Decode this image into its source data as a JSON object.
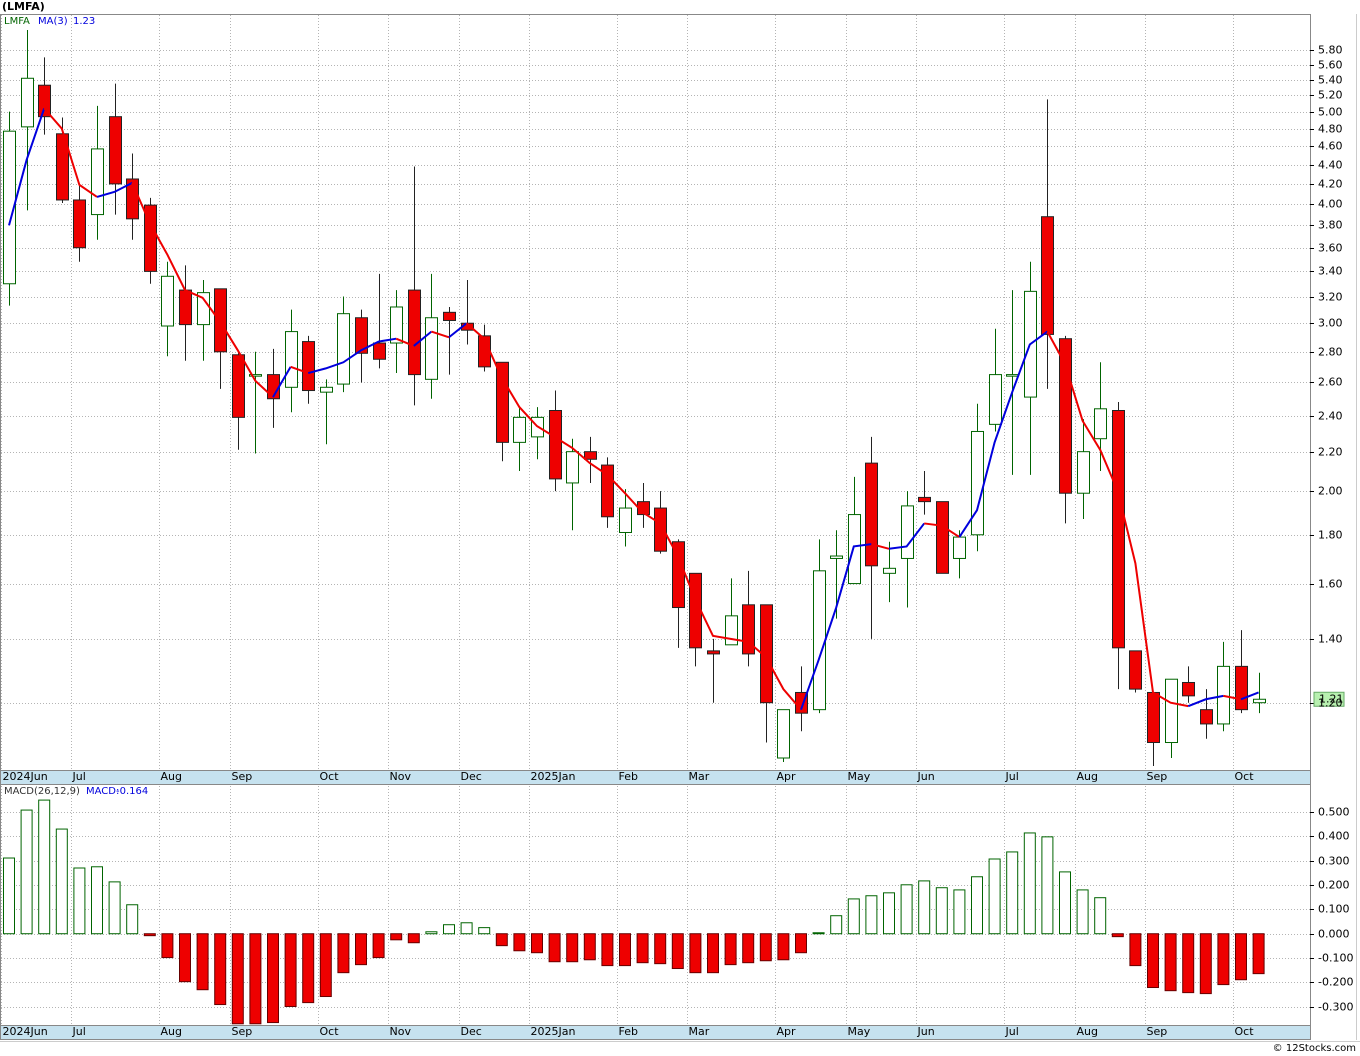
{
  "chart_data": [
    {
      "type": "candlestick",
      "title": "(LMFA)",
      "name": "LMFA",
      "log_scale": true,
      "grid": true,
      "up_color": "#006400",
      "down_color": "#ee0000",
      "categories": [
        "2024Jun",
        null,
        null,
        null,
        "Jul",
        null,
        null,
        null,
        null,
        "Aug",
        null,
        null,
        null,
        "Sep",
        null,
        null,
        null,
        null,
        "Oct",
        null,
        null,
        null,
        "Nov",
        null,
        null,
        null,
        "Dec",
        null,
        null,
        null,
        "2025Jan",
        null,
        null,
        null,
        null,
        "Feb",
        null,
        null,
        null,
        "Mar",
        null,
        null,
        null,
        null,
        "Apr",
        null,
        null,
        null,
        "May",
        null,
        null,
        null,
        "Jun",
        null,
        null,
        null,
        null,
        "Jul",
        null,
        null,
        null,
        "Aug",
        null,
        null,
        null,
        "Sep",
        null,
        null,
        null,
        null,
        "Oct",
        null
      ],
      "open": [
        3.3,
        4.82,
        5.33,
        4.74,
        4.04,
        3.9,
        4.94,
        4.25,
        3.99,
        2.98,
        3.25,
        2.99,
        3.26,
        2.78,
        2.64,
        2.65,
        2.57,
        2.87,
        2.54,
        2.59,
        3.04,
        2.86,
        2.86,
        3.25,
        2.62,
        3.08,
        3.0,
        2.91,
        2.73,
        2.25,
        2.28,
        2.43,
        2.04,
        2.2,
        2.13,
        1.81,
        1.95,
        1.92,
        1.77,
        1.64,
        1.36,
        1.38,
        1.52,
        1.52,
        1.05,
        1.23,
        1.18,
        1.7,
        1.6,
        2.14,
        1.64,
        1.7,
        1.97,
        1.95,
        1.7,
        1.8,
        2.35,
        2.64,
        2.51,
        3.88,
        2.89,
        1.99,
        2.27,
        2.43,
        1.36,
        1.23,
        1.09,
        1.26,
        1.18,
        1.14,
        1.31,
        1.2
      ],
      "high": [
        5.0,
        6.09,
        5.7,
        4.93,
        4.2,
        5.07,
        5.35,
        4.52,
        4.06,
        3.48,
        3.45,
        3.33,
        3.26,
        2.8,
        2.8,
        2.82,
        3.1,
        2.91,
        2.62,
        3.2,
        3.1,
        3.38,
        3.25,
        4.38,
        3.38,
        3.12,
        3.33,
        2.99,
        2.73,
        2.45,
        2.45,
        2.55,
        2.27,
        2.28,
        2.17,
        2.01,
        2.04,
        2.0,
        1.78,
        1.64,
        1.4,
        1.62,
        1.65,
        1.52,
        1.18,
        1.31,
        1.78,
        1.82,
        2.07,
        2.28,
        1.77,
        2.0,
        2.1,
        1.95,
        1.82,
        2.47,
        2.96,
        3.25,
        3.48,
        5.15,
        2.91,
        2.38,
        2.73,
        2.48,
        1.36,
        1.23,
        1.27,
        1.31,
        1.24,
        1.39,
        1.43,
        1.29
      ],
      "low": [
        3.13,
        3.94,
        4.73,
        4.01,
        3.48,
        3.67,
        3.9,
        3.67,
        3.3,
        2.77,
        2.74,
        2.74,
        2.56,
        2.21,
        2.19,
        2.33,
        2.42,
        2.47,
        2.24,
        2.54,
        2.6,
        2.69,
        2.66,
        2.46,
        2.5,
        2.65,
        2.85,
        2.67,
        2.15,
        2.1,
        2.16,
        2.0,
        1.82,
        2.04,
        1.83,
        1.75,
        1.83,
        1.72,
        1.37,
        1.31,
        1.2,
        1.38,
        1.31,
        1.09,
        1.04,
        1.12,
        1.17,
        1.47,
        1.6,
        1.4,
        1.53,
        1.51,
        1.89,
        1.64,
        1.62,
        1.73,
        2.31,
        2.08,
        2.08,
        2.56,
        1.85,
        1.87,
        2.1,
        1.24,
        1.23,
        1.03,
        1.05,
        1.2,
        1.1,
        1.12,
        1.17,
        1.17
      ],
      "close": [
        4.77,
        5.42,
        4.94,
        4.04,
        3.6,
        4.57,
        4.2,
        3.86,
        3.4,
        3.36,
        2.99,
        3.23,
        2.8,
        2.39,
        2.65,
        2.5,
        2.94,
        2.55,
        2.57,
        3.07,
        2.79,
        2.75,
        3.12,
        2.65,
        3.04,
        3.02,
        2.95,
        2.7,
        2.25,
        2.39,
        2.39,
        2.06,
        2.2,
        2.16,
        1.88,
        1.92,
        1.89,
        1.73,
        1.51,
        1.37,
        1.35,
        1.48,
        1.35,
        1.2,
        1.18,
        1.17,
        1.65,
        1.71,
        1.89,
        1.67,
        1.66,
        1.93,
        1.95,
        1.64,
        1.79,
        2.31,
        2.65,
        2.65,
        3.24,
        2.92,
        1.99,
        2.2,
        2.44,
        1.37,
        1.24,
        1.09,
        1.27,
        1.22,
        1.14,
        1.31,
        1.18,
        1.21
      ],
      "series": [
        {
          "name": "MA(3)",
          "color": "#0000dd",
          "down_color": "#ee0000",
          "values": [
            3.8,
            4.45,
            5.04,
            4.8,
            4.19,
            4.07,
            4.12,
            4.21,
            3.82,
            3.54,
            3.25,
            3.19,
            3.01,
            2.81,
            2.61,
            2.51,
            2.7,
            2.66,
            2.69,
            2.73,
            2.81,
            2.87,
            2.89,
            2.84,
            2.94,
            2.9,
            3.0,
            2.89,
            2.63,
            2.45,
            2.34,
            2.28,
            2.22,
            2.14,
            2.08,
            1.99,
            1.9,
            1.85,
            1.71,
            1.54,
            1.41,
            1.4,
            1.39,
            1.34,
            1.24,
            1.18,
            1.33,
            1.51,
            1.75,
            1.76,
            1.74,
            1.75,
            1.85,
            1.84,
            1.79,
            1.91,
            2.25,
            2.54,
            2.85,
            2.94,
            2.72,
            2.37,
            2.21,
            2.0,
            1.68,
            1.23,
            1.2,
            1.19,
            1.21,
            1.22,
            1.21,
            1.23
          ]
        }
      ],
      "ylim": [
        1.02,
        6.33
      ],
      "yticks": [
        {
          "value": 1.2,
          "label": "1.20"
        },
        {
          "value": 1.4,
          "label": "1.40"
        },
        {
          "value": 1.6,
          "label": "1.60"
        },
        {
          "value": 1.8,
          "label": "1.80"
        },
        {
          "value": 2.0,
          "label": "2.00"
        },
        {
          "value": 2.2,
          "label": "2.20"
        },
        {
          "value": 2.4,
          "label": "2.40"
        },
        {
          "value": 2.6,
          "label": "2.60"
        },
        {
          "value": 2.8,
          "label": "2.80"
        },
        {
          "value": 3.0,
          "label": "3.00"
        },
        {
          "value": 3.2,
          "label": "3.20"
        },
        {
          "value": 3.4,
          "label": "3.40"
        },
        {
          "value": 3.6,
          "label": "3.60"
        },
        {
          "value": 3.8,
          "label": "3.80"
        },
        {
          "value": 4.0,
          "label": "4.00"
        },
        {
          "value": 4.2,
          "label": "4.20"
        },
        {
          "value": 4.4,
          "label": "4.40"
        },
        {
          "value": 4.6,
          "label": "4.60"
        },
        {
          "value": 4.8,
          "label": "4.80"
        },
        {
          "value": 5.0,
          "label": "5.00"
        },
        {
          "value": 5.2,
          "label": "5.20"
        },
        {
          "value": 5.4,
          "label": "5.40"
        },
        {
          "value": 5.6,
          "label": "5.60"
        },
        {
          "value": 5.8,
          "label": "5.80"
        }
      ]
    },
    {
      "type": "bar",
      "name": "MACD(26,12,9)",
      "series_label": "MACD:",
      "grid": true,
      "up_color": "#006400",
      "down_color": "#ee0000",
      "categories": [
        "2024Jun",
        null,
        null,
        null,
        "Jul",
        null,
        null,
        null,
        null,
        "Aug",
        null,
        null,
        null,
        "Sep",
        null,
        null,
        null,
        null,
        "Oct",
        null,
        null,
        null,
        "Nov",
        null,
        null,
        null,
        "Dec",
        null,
        null,
        null,
        "2025Jan",
        null,
        null,
        null,
        null,
        "Feb",
        null,
        null,
        null,
        "Mar",
        null,
        null,
        null,
        null,
        "Apr",
        null,
        null,
        null,
        "May",
        null,
        null,
        null,
        "Jun",
        null,
        null,
        null,
        null,
        "Jul",
        null,
        null,
        null,
        "Aug",
        null,
        null,
        null,
        "Sep",
        null,
        null,
        null,
        null,
        "Oct",
        null
      ],
      "values": [
        0.311,
        0.508,
        0.549,
        0.43,
        0.27,
        0.275,
        0.213,
        0.119,
        -0.008,
        -0.098,
        -0.197,
        -0.23,
        -0.291,
        -0.37,
        -0.37,
        -0.365,
        -0.299,
        -0.283,
        -0.258,
        -0.16,
        -0.127,
        -0.098,
        -0.025,
        -0.037,
        0.008,
        0.037,
        0.045,
        0.025,
        -0.049,
        -0.07,
        -0.078,
        -0.115,
        -0.115,
        -0.107,
        -0.131,
        -0.131,
        -0.119,
        -0.123,
        -0.143,
        -0.16,
        -0.16,
        -0.127,
        -0.119,
        -0.111,
        -0.107,
        -0.078,
        0.004,
        0.074,
        0.143,
        0.156,
        0.168,
        0.201,
        0.217,
        0.189,
        0.18,
        0.234,
        0.307,
        0.336,
        0.414,
        0.398,
        0.254,
        0.18,
        0.148,
        -0.012,
        -0.131,
        -0.221,
        -0.234,
        -0.242,
        -0.246,
        -0.209,
        -0.189,
        -0.164
      ],
      "ylim": [
        -0.375,
        0.611
      ],
      "yticks": [
        {
          "value": -0.3,
          "label": "-0.300"
        },
        {
          "value": -0.2,
          "label": "-0.200"
        },
        {
          "value": -0.1,
          "label": "-0.100"
        },
        {
          "value": 0.0,
          "label": "0.000"
        },
        {
          "value": 0.1,
          "label": "0.100"
        },
        {
          "value": 0.2,
          "label": "0.200"
        },
        {
          "value": 0.3,
          "label": "0.300"
        },
        {
          "value": 0.4,
          "label": "0.400"
        },
        {
          "value": 0.5,
          "label": "0.500"
        }
      ]
    }
  ],
  "credit": "© 12Stocks.com"
}
